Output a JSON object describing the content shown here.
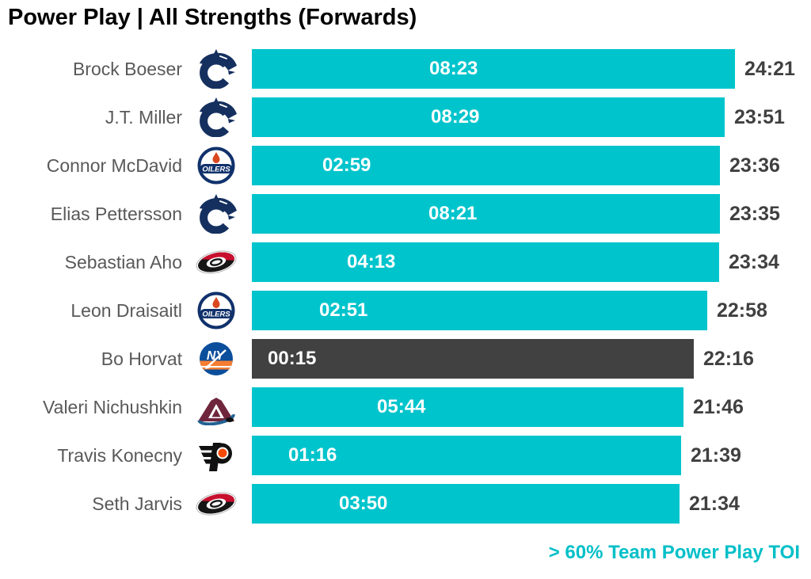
{
  "header": {
    "title": "Power Play | All Strengths (Forwards)"
  },
  "footer": {
    "note": "> 60% Team Power Play TOI"
  },
  "colors": {
    "bar_teal": "#00C4CC",
    "bar_highlight_dark": "#414141",
    "bar_value_text": "#FFFFFF",
    "total_value_text": "#404040",
    "player_name_text": "#595959",
    "note_text": "#00BFC8",
    "title_text": "#000000"
  },
  "chart_data": {
    "type": "bar",
    "orientation": "horizontal",
    "title": "Power Play | All Strengths (Forwards)",
    "value_format": "mm:ss",
    "x_axis": {
      "min_seconds": 0,
      "max_seconds": 1461,
      "axis_shown": false
    },
    "grid": false,
    "legend_position": "bottom-right",
    "footnote": "> 60% Team Power Play TOI",
    "bars": [
      {
        "player": "Brock Boeser",
        "team": "canucks",
        "team_logo_icon": "canucks-logo-icon",
        "pp_toi_label": "08:23",
        "pp_toi_seconds": 503,
        "total_toi_label": "24:21",
        "total_toi_seconds": 1461,
        "bar_style": "teal"
      },
      {
        "player": "J.T. Miller",
        "team": "canucks",
        "team_logo_icon": "canucks-logo-icon",
        "pp_toi_label": "08:29",
        "pp_toi_seconds": 509,
        "total_toi_label": "23:51",
        "total_toi_seconds": 1431,
        "bar_style": "teal"
      },
      {
        "player": "Connor McDavid",
        "team": "oilers",
        "team_logo_icon": "oilers-logo-icon",
        "pp_toi_label": "02:59",
        "pp_toi_seconds": 179,
        "total_toi_label": "23:36",
        "total_toi_seconds": 1416,
        "bar_style": "teal"
      },
      {
        "player": "Elias Pettersson",
        "team": "canucks",
        "team_logo_icon": "canucks-logo-icon",
        "pp_toi_label": "08:21",
        "pp_toi_seconds": 501,
        "total_toi_label": "23:35",
        "total_toi_seconds": 1415,
        "bar_style": "teal"
      },
      {
        "player": "Sebastian Aho",
        "team": "hurricanes",
        "team_logo_icon": "hurricanes-logo-icon",
        "pp_toi_label": "04:13",
        "pp_toi_seconds": 253,
        "total_toi_label": "23:34",
        "total_toi_seconds": 1414,
        "bar_style": "teal"
      },
      {
        "player": "Leon Draisaitl",
        "team": "oilers",
        "team_logo_icon": "oilers-logo-icon",
        "pp_toi_label": "02:51",
        "pp_toi_seconds": 171,
        "total_toi_label": "22:58",
        "total_toi_seconds": 1378,
        "bar_style": "teal"
      },
      {
        "player": "Bo Horvat",
        "team": "islanders",
        "team_logo_icon": "islanders-logo-icon",
        "pp_toi_label": "00:15",
        "pp_toi_seconds": 15,
        "total_toi_label": "22:16",
        "total_toi_seconds": 1336,
        "bar_style": "dark"
      },
      {
        "player": "Valeri Nichushkin",
        "team": "avalanche",
        "team_logo_icon": "avalanche-logo-icon",
        "pp_toi_label": "05:44",
        "pp_toi_seconds": 344,
        "total_toi_label": "21:46",
        "total_toi_seconds": 1306,
        "bar_style": "teal"
      },
      {
        "player": "Travis Konecny",
        "team": "flyers",
        "team_logo_icon": "flyers-logo-icon",
        "pp_toi_label": "01:16",
        "pp_toi_seconds": 76,
        "total_toi_label": "21:39",
        "total_toi_seconds": 1299,
        "bar_style": "teal"
      },
      {
        "player": "Seth Jarvis",
        "team": "hurricanes",
        "team_logo_icon": "hurricanes-logo-icon",
        "pp_toi_label": "03:50",
        "pp_toi_seconds": 230,
        "total_toi_label": "21:34",
        "total_toi_seconds": 1294,
        "bar_style": "teal"
      }
    ]
  }
}
